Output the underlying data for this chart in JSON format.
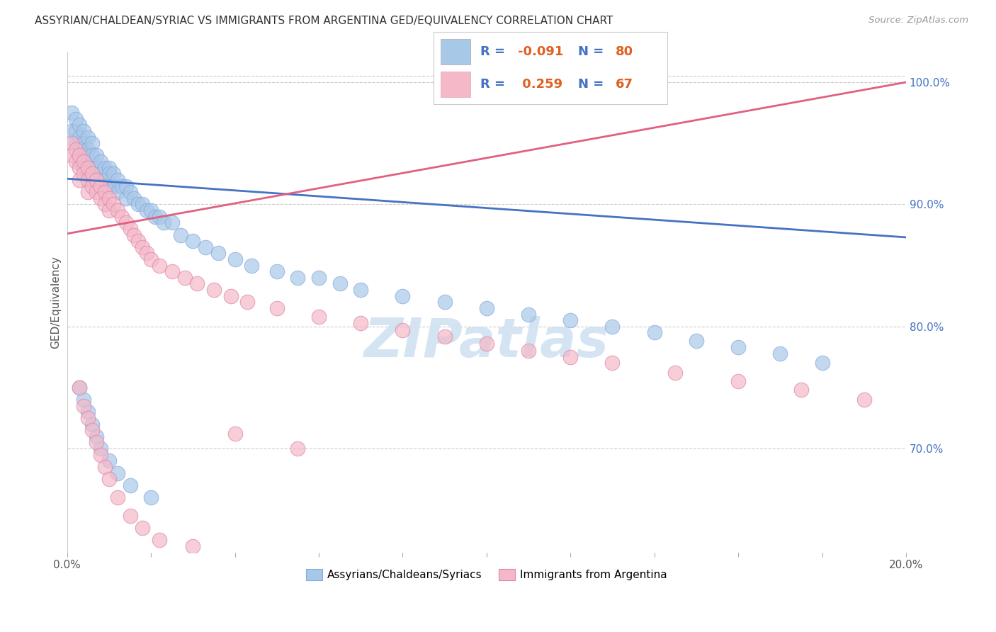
{
  "title": "ASSYRIAN/CHALDEAN/SYRIAC VS IMMIGRANTS FROM ARGENTINA GED/EQUIVALENCY CORRELATION CHART",
  "source": "Source: ZipAtlas.com",
  "ylabel": "GED/Equivalency",
  "r_blue": -0.091,
  "n_blue": 80,
  "r_pink": 0.259,
  "n_pink": 67,
  "watermark": "ZIPatlas",
  "legend_label_blue": "Assyrians/Chaldeans/Syriacs",
  "legend_label_pink": "Immigrants from Argentina",
  "blue_color": "#a8c8e8",
  "pink_color": "#f4b8c8",
  "line_blue": "#4472c4",
  "line_pink": "#e06080",
  "xlim": [
    0.0,
    0.2
  ],
  "ylim": [
    0.615,
    1.025
  ],
  "yticks": [
    0.7,
    0.8,
    0.9,
    1.0
  ],
  "ytick_labels": [
    "70.0%",
    "80.0%",
    "90.0%",
    "100.0%"
  ],
  "blue_scatter_x": [
    0.001,
    0.001,
    0.002,
    0.002,
    0.002,
    0.003,
    0.003,
    0.003,
    0.003,
    0.004,
    0.004,
    0.004,
    0.004,
    0.005,
    0.005,
    0.005,
    0.005,
    0.006,
    0.006,
    0.006,
    0.006,
    0.007,
    0.007,
    0.007,
    0.008,
    0.008,
    0.009,
    0.009,
    0.01,
    0.01,
    0.01,
    0.011,
    0.011,
    0.012,
    0.012,
    0.013,
    0.014,
    0.014,
    0.015,
    0.016,
    0.017,
    0.018,
    0.019,
    0.02,
    0.021,
    0.022,
    0.023,
    0.025,
    0.027,
    0.03,
    0.033,
    0.036,
    0.04,
    0.044,
    0.05,
    0.055,
    0.06,
    0.065,
    0.07,
    0.08,
    0.09,
    0.1,
    0.11,
    0.12,
    0.13,
    0.14,
    0.15,
    0.16,
    0.17,
    0.18,
    0.003,
    0.004,
    0.005,
    0.006,
    0.007,
    0.008,
    0.01,
    0.012,
    0.015,
    0.02
  ],
  "blue_scatter_y": [
    0.975,
    0.96,
    0.97,
    0.96,
    0.95,
    0.965,
    0.955,
    0.945,
    0.935,
    0.96,
    0.95,
    0.94,
    0.93,
    0.955,
    0.945,
    0.935,
    0.925,
    0.95,
    0.94,
    0.93,
    0.92,
    0.94,
    0.93,
    0.92,
    0.935,
    0.925,
    0.93,
    0.92,
    0.93,
    0.925,
    0.915,
    0.925,
    0.915,
    0.92,
    0.91,
    0.915,
    0.915,
    0.905,
    0.91,
    0.905,
    0.9,
    0.9,
    0.895,
    0.895,
    0.89,
    0.89,
    0.885,
    0.885,
    0.875,
    0.87,
    0.865,
    0.86,
    0.855,
    0.85,
    0.845,
    0.84,
    0.84,
    0.835,
    0.83,
    0.825,
    0.82,
    0.815,
    0.81,
    0.805,
    0.8,
    0.795,
    0.788,
    0.783,
    0.778,
    0.77,
    0.75,
    0.74,
    0.73,
    0.72,
    0.71,
    0.7,
    0.69,
    0.68,
    0.67,
    0.66
  ],
  "pink_scatter_x": [
    0.001,
    0.001,
    0.002,
    0.002,
    0.003,
    0.003,
    0.003,
    0.004,
    0.004,
    0.005,
    0.005,
    0.005,
    0.006,
    0.006,
    0.007,
    0.007,
    0.008,
    0.008,
    0.009,
    0.009,
    0.01,
    0.01,
    0.011,
    0.012,
    0.013,
    0.014,
    0.015,
    0.016,
    0.017,
    0.018,
    0.019,
    0.02,
    0.022,
    0.025,
    0.028,
    0.031,
    0.035,
    0.039,
    0.043,
    0.05,
    0.06,
    0.07,
    0.08,
    0.09,
    0.1,
    0.11,
    0.12,
    0.13,
    0.145,
    0.16,
    0.175,
    0.19,
    0.003,
    0.004,
    0.005,
    0.006,
    0.007,
    0.008,
    0.009,
    0.01,
    0.012,
    0.015,
    0.018,
    0.022,
    0.03,
    0.04,
    0.055
  ],
  "pink_scatter_y": [
    0.95,
    0.94,
    0.945,
    0.935,
    0.94,
    0.93,
    0.92,
    0.935,
    0.925,
    0.93,
    0.92,
    0.91,
    0.925,
    0.915,
    0.92,
    0.91,
    0.915,
    0.905,
    0.91,
    0.9,
    0.905,
    0.895,
    0.9,
    0.895,
    0.89,
    0.885,
    0.88,
    0.875,
    0.87,
    0.865,
    0.86,
    0.855,
    0.85,
    0.845,
    0.84,
    0.835,
    0.83,
    0.825,
    0.82,
    0.815,
    0.808,
    0.803,
    0.797,
    0.792,
    0.786,
    0.78,
    0.775,
    0.77,
    0.762,
    0.755,
    0.748,
    0.74,
    0.75,
    0.735,
    0.725,
    0.715,
    0.705,
    0.695,
    0.685,
    0.675,
    0.66,
    0.645,
    0.635,
    0.625,
    0.62,
    0.712,
    0.7
  ],
  "blue_line_y0": 0.921,
  "blue_line_y1": 0.873,
  "pink_line_y0": 0.876,
  "pink_line_y1": 1.0
}
